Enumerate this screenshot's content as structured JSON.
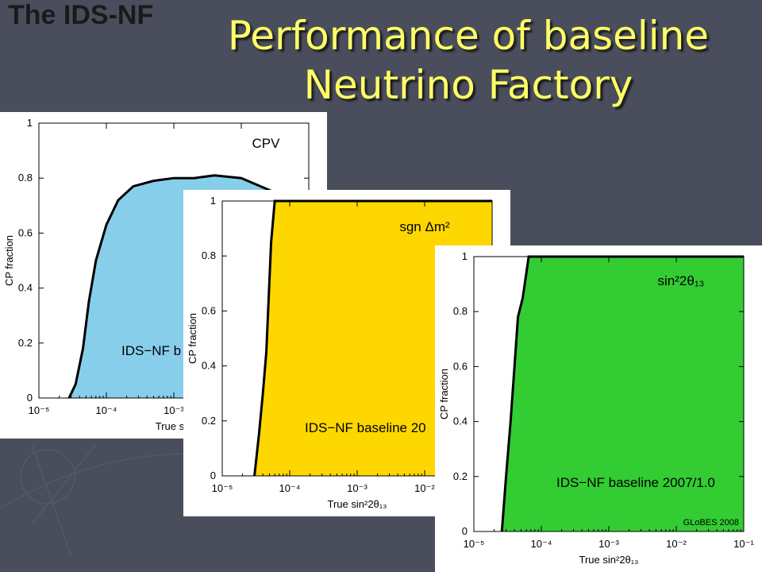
{
  "header": {
    "corner_label": "The IDS-NF",
    "title_line1": "Performance of baseline",
    "title_line2": "Neutrino Factory"
  },
  "colors": {
    "background": "#4a4e5c",
    "title": "#ffff66",
    "cpv_fill": "#87ceeb",
    "sgn_fill": "#ffd700",
    "theta_fill": "#33cc33"
  },
  "chart_data": [
    {
      "type": "area",
      "id": "cpv",
      "panel_label": "CPV",
      "ylabel": "CP fraction",
      "xlabel_visible": "True sin",
      "annotation": "IDS−NF b",
      "x_scale": "log",
      "xlim": [
        1e-05,
        0.1
      ],
      "ylim": [
        0,
        1
      ],
      "x_ticks": [
        "10⁻⁵",
        "10⁻⁴",
        "10⁻³"
      ],
      "y_ticks": [
        "0",
        "0.2",
        "0.4",
        "0.6",
        "0.8",
        "1"
      ],
      "fill": "#87ceeb",
      "points": [
        [
          2.8e-05,
          0
        ],
        [
          3.5e-05,
          0.05
        ],
        [
          4.5e-05,
          0.18
        ],
        [
          5.5e-05,
          0.35
        ],
        [
          7e-05,
          0.5
        ],
        [
          0.0001,
          0.63
        ],
        [
          0.00015,
          0.72
        ],
        [
          0.00025,
          0.77
        ],
        [
          0.0005,
          0.79
        ],
        [
          0.001,
          0.8
        ],
        [
          0.002,
          0.8
        ],
        [
          0.004,
          0.81
        ],
        [
          0.01,
          0.8
        ],
        [
          0.03,
          0.75
        ]
      ]
    },
    {
      "type": "area",
      "id": "sgn",
      "panel_label": "sgn Δm²",
      "ylabel": "CP fraction",
      "xlabel": "True sin²2θ₁₃",
      "annotation": "IDS−NF baseline 20",
      "x_scale": "log",
      "xlim": [
        1e-05,
        0.1
      ],
      "ylim": [
        0,
        1
      ],
      "x_ticks": [
        "10⁻⁵",
        "10⁻⁴",
        "10⁻³",
        "10⁻²"
      ],
      "y_ticks": [
        "0",
        "0.2",
        "0.4",
        "0.6",
        "0.8",
        "1"
      ],
      "fill": "#ffd700",
      "points": [
        [
          3e-05,
          0
        ],
        [
          3.5e-05,
          0.15
        ],
        [
          4e-05,
          0.3
        ],
        [
          4.5e-05,
          0.45
        ],
        [
          5.3e-05,
          0.85
        ],
        [
          6e-05,
          1
        ],
        [
          0.1,
          1
        ]
      ]
    },
    {
      "type": "area",
      "id": "theta13",
      "panel_label": "sin²2θ₁₃",
      "ylabel": "CP fraction",
      "xlabel": "True sin²2θ₁₃",
      "annotation": "IDS−NF baseline 2007/1.0",
      "note": "GLoBES 2008",
      "x_scale": "log",
      "xlim": [
        1e-05,
        0.1
      ],
      "ylim": [
        0,
        1
      ],
      "x_ticks": [
        "10⁻⁵",
        "10⁻⁴",
        "10⁻³",
        "10⁻²",
        "10⁻¹"
      ],
      "y_ticks": [
        "0",
        "0.2",
        "0.4",
        "0.6",
        "0.8",
        "1"
      ],
      "fill": "#33cc33",
      "points": [
        [
          2.6e-05,
          0
        ],
        [
          3e-05,
          0.2
        ],
        [
          3.5e-05,
          0.4
        ],
        [
          4e-05,
          0.6
        ],
        [
          4.5e-05,
          0.78
        ],
        [
          5.3e-05,
          0.85
        ],
        [
          6.5e-05,
          1
        ],
        [
          0.1,
          1
        ]
      ]
    }
  ]
}
